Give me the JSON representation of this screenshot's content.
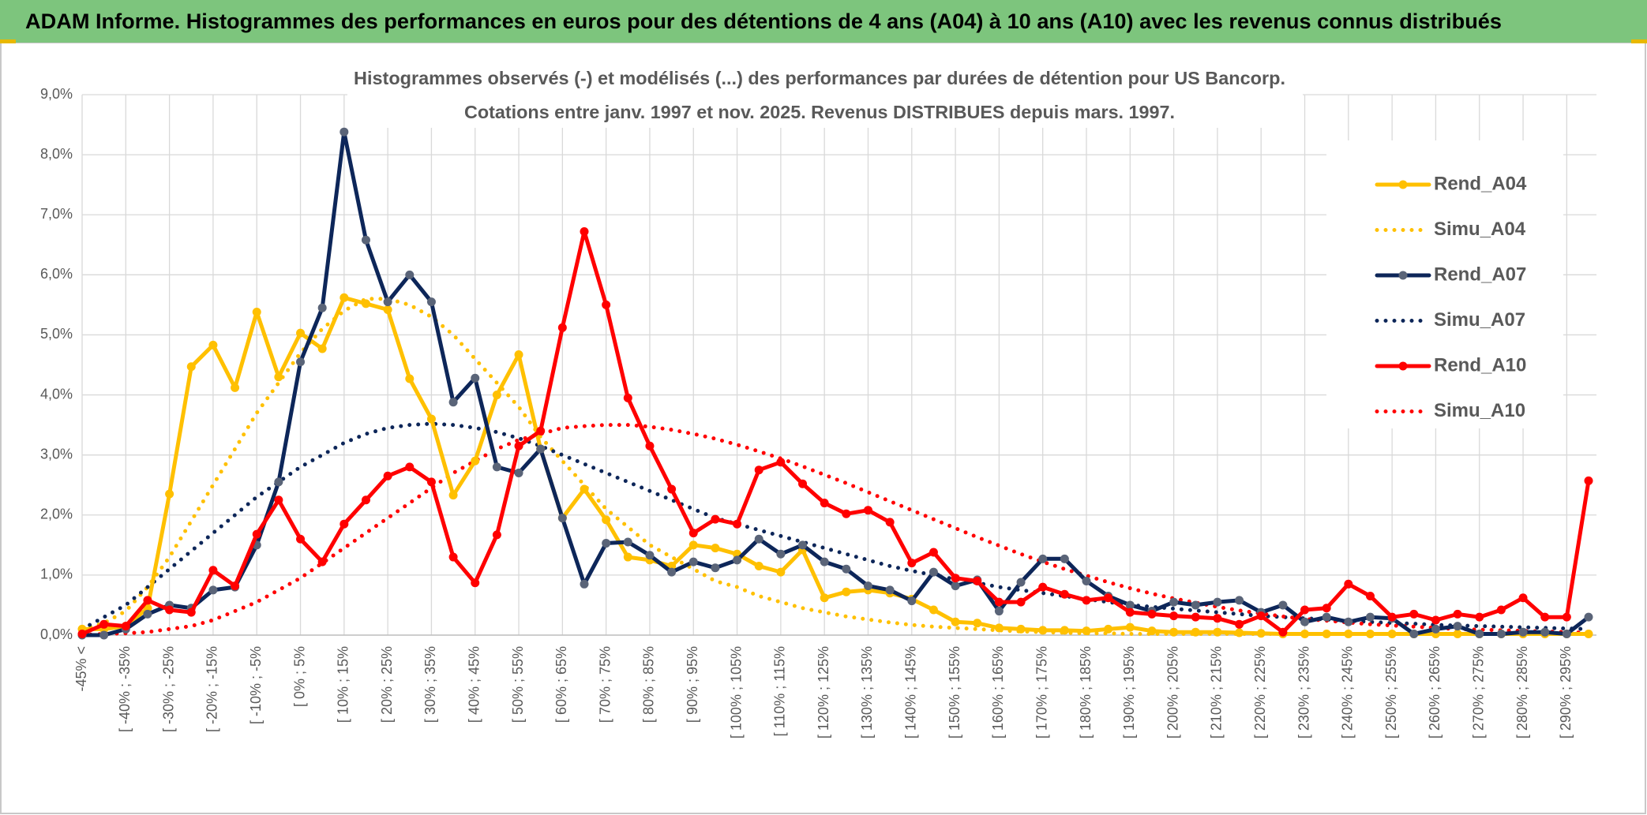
{
  "header": {
    "title": "ADAM Informe. Histogrammes des performances en euros pour des détentions de 4 ans (A04) à 10 ans (A10) avec les revenus connus distribués"
  },
  "chart_data": {
    "type": "line",
    "title": "Histogrammes observés (-) et modélisés (...) des performances par durées de détention pour US Bancorp.",
    "subtitle": "Cotations entre janv. 1997 et nov. 2025. Revenus DISTRIBUES depuis mars. 1997.",
    "categories": [
      "-45% <",
      null,
      "[ -40% ; -35%",
      null,
      "[ -30% ; -25%",
      null,
      "[ -20% ; -15%",
      null,
      "[ -10% ; -5%",
      null,
      "[ 0% ; 5%",
      null,
      "[ 10% ; 15%",
      null,
      "[ 20% ; 25%",
      null,
      "[ 30% ; 35%",
      null,
      "[ 40% ; 45%",
      null,
      "[ 50% ; 55%",
      null,
      "[ 60% ; 65%",
      null,
      "[ 70% ; 75%",
      null,
      "[ 80% ; 85%",
      null,
      "[ 90% ; 95%",
      null,
      "[ 100% ; 105%",
      null,
      "[ 110% ; 115%",
      null,
      "[ 120% ; 125%",
      null,
      "[ 130% ; 135%",
      null,
      "[ 140% ; 145%",
      null,
      "[ 150% ; 155%",
      null,
      "[ 160% ; 165%",
      null,
      "[ 170% ; 175%",
      null,
      "[ 180% ; 185%",
      null,
      "[ 190% ; 195%",
      null,
      "[ 200% ; 205%",
      null,
      "[ 210% ; 215%",
      null,
      "[ 220% ; 225%",
      null,
      "[ 230% ; 235%",
      null,
      "[ 240% ; 245%",
      null,
      "[ 250% ; 255%",
      null,
      "[ 260% ; 265%",
      null,
      "[ 270% ; 275%",
      null,
      "[ 280% ; 285%",
      null,
      "[ 290% ; 295%",
      null
    ],
    "ylim": [
      0,
      9
    ],
    "yticks": [
      {
        "value": 0,
        "label": "0,0%"
      },
      {
        "value": 1,
        "label": "1,0%"
      },
      {
        "value": 2,
        "label": "2,0%"
      },
      {
        "value": 3,
        "label": "3,0%"
      },
      {
        "value": 4,
        "label": "4,0%"
      },
      {
        "value": 5,
        "label": "5,0%"
      },
      {
        "value": 6,
        "label": "6,0%"
      },
      {
        "value": 7,
        "label": "7,0%"
      },
      {
        "value": 8,
        "label": "8,0%"
      },
      {
        "value": 9,
        "label": "9,0%"
      }
    ],
    "grid": true,
    "legend": "right",
    "series": [
      {
        "name": "Rend_A04",
        "color": "#ffc000",
        "line_style": "solid",
        "markers": true,
        "values": [
          0.1,
          0.1,
          0.15,
          0.45,
          2.35,
          4.47,
          4.83,
          4.12,
          5.38,
          4.3,
          5.03,
          4.77,
          5.62,
          5.52,
          5.42,
          4.27,
          3.6,
          2.33,
          2.9,
          4.0,
          4.67,
          3.1,
          1.95,
          2.43,
          1.92,
          1.3,
          1.25,
          1.15,
          1.5,
          1.45,
          1.35,
          1.15,
          1.05,
          1.42,
          0.62,
          0.72,
          0.75,
          0.7,
          0.6,
          0.42,
          0.22,
          0.2,
          0.12,
          0.1,
          0.08,
          0.08,
          0.07,
          0.1,
          0.13,
          0.07,
          0.05,
          0.05,
          0.05,
          0.04,
          0.03,
          0.02,
          0.02,
          0.02,
          0.02,
          0.02,
          0.02,
          0.02,
          0.02,
          0.02,
          0.02,
          0.02,
          0.02,
          0.02,
          0.02,
          0.02
        ]
      },
      {
        "name": "Simu_A04",
        "color": "#ffc000",
        "line_style": "dotted",
        "markers": false,
        "values": [
          0.1,
          0.2,
          0.4,
          0.8,
          1.3,
          1.9,
          2.5,
          3.1,
          3.7,
          4.2,
          4.7,
          5.1,
          5.4,
          5.6,
          5.6,
          5.5,
          5.3,
          5.0,
          4.6,
          4.2,
          3.8,
          3.3,
          2.9,
          2.5,
          2.1,
          1.8,
          1.5,
          1.3,
          1.1,
          0.9,
          0.8,
          0.65,
          0.55,
          0.45,
          0.38,
          0.31,
          0.26,
          0.21,
          0.17,
          0.14,
          0.12,
          0.1,
          0.08,
          0.06,
          0.05,
          0.04,
          0.03,
          0.03,
          0.02,
          0.02,
          0.02,
          0.02,
          0.02,
          0.02,
          0.02,
          0.02,
          0.02,
          0.02,
          0.02,
          0.02,
          0.02,
          0.02,
          0.02,
          0.02,
          0.02,
          0.02,
          0.02,
          0.02,
          0.02,
          0.02
        ]
      },
      {
        "name": "Rend_A07",
        "color": "#0d2659",
        "marker_color": "#5a6478",
        "line_style": "solid",
        "markers": true,
        "values": [
          0.0,
          0.0,
          0.1,
          0.35,
          0.5,
          0.45,
          0.75,
          0.8,
          1.5,
          2.55,
          4.55,
          5.45,
          8.38,
          6.58,
          5.55,
          6.0,
          5.55,
          3.88,
          4.28,
          2.8,
          2.7,
          3.1,
          1.95,
          0.85,
          1.53,
          1.55,
          1.33,
          1.05,
          1.22,
          1.12,
          1.25,
          1.6,
          1.35,
          1.5,
          1.22,
          1.1,
          0.82,
          0.75,
          0.57,
          1.05,
          0.82,
          0.92,
          0.4,
          0.88,
          1.27,
          1.27,
          0.9,
          0.65,
          0.5,
          0.4,
          0.55,
          0.5,
          0.55,
          0.58,
          0.38,
          0.5,
          0.22,
          0.3,
          0.22,
          0.3,
          0.28,
          0.02,
          0.1,
          0.15,
          0.02,
          0.02,
          0.05,
          0.05,
          0.02,
          0.3
        ]
      },
      {
        "name": "Simu_A07",
        "color": "#0d2659",
        "line_style": "dotted",
        "markers": false,
        "values": [
          0.1,
          0.3,
          0.5,
          0.8,
          1.1,
          1.4,
          1.7,
          2.0,
          2.3,
          2.55,
          2.8,
          3.0,
          3.2,
          3.35,
          3.45,
          3.5,
          3.52,
          3.5,
          3.45,
          3.38,
          3.28,
          3.15,
          3.0,
          2.85,
          2.7,
          2.55,
          2.4,
          2.25,
          2.1,
          1.95,
          1.85,
          1.75,
          1.65,
          1.55,
          1.45,
          1.35,
          1.25,
          1.15,
          1.07,
          1.0,
          0.93,
          0.87,
          0.8,
          0.75,
          0.7,
          0.65,
          0.6,
          0.55,
          0.5,
          0.47,
          0.44,
          0.41,
          0.38,
          0.35,
          0.32,
          0.3,
          0.28,
          0.26,
          0.24,
          0.22,
          0.2,
          0.19,
          0.17,
          0.16,
          0.15,
          0.14,
          0.13,
          0.12,
          0.11,
          0.1
        ]
      },
      {
        "name": "Rend_A10",
        "color": "#ff0000",
        "line_style": "solid",
        "markers": true,
        "values": [
          0.02,
          0.18,
          0.15,
          0.58,
          0.42,
          0.38,
          1.08,
          0.82,
          1.68,
          2.25,
          1.6,
          1.22,
          1.85,
          2.25,
          2.65,
          2.8,
          2.55,
          1.3,
          0.87,
          1.67,
          3.15,
          3.4,
          5.12,
          6.72,
          5.5,
          3.95,
          3.15,
          2.43,
          1.7,
          1.93,
          1.85,
          2.75,
          2.88,
          2.52,
          2.2,
          2.02,
          2.08,
          1.88,
          1.2,
          1.38,
          0.95,
          0.9,
          0.55,
          0.55,
          0.8,
          0.68,
          0.58,
          0.62,
          0.38,
          0.35,
          0.32,
          0.3,
          0.28,
          0.18,
          0.32,
          0.05,
          0.42,
          0.45,
          0.85,
          0.65,
          0.3,
          0.35,
          0.25,
          0.35,
          0.3,
          0.42,
          0.62,
          0.3,
          0.3,
          2.57
        ]
      },
      {
        "name": "Simu_A10",
        "color": "#ff0000",
        "line_style": "dotted",
        "markers": false,
        "values": [
          0.0,
          0.02,
          0.03,
          0.05,
          0.1,
          0.15,
          0.25,
          0.4,
          0.55,
          0.75,
          0.95,
          1.2,
          1.45,
          1.7,
          1.95,
          2.2,
          2.45,
          2.7,
          2.9,
          3.1,
          3.25,
          3.35,
          3.45,
          3.48,
          3.5,
          3.5,
          3.47,
          3.42,
          3.35,
          3.27,
          3.17,
          3.06,
          2.94,
          2.81,
          2.67,
          2.53,
          2.38,
          2.23,
          2.08,
          1.93,
          1.78,
          1.63,
          1.49,
          1.35,
          1.22,
          1.1,
          0.99,
          0.88,
          0.78,
          0.69,
          0.61,
          0.54,
          0.47,
          0.41,
          0.36,
          0.31,
          0.27,
          0.24,
          0.21,
          0.18,
          0.16,
          0.14,
          0.12,
          0.1,
          0.09,
          0.08,
          0.07,
          0.06,
          0.05,
          0.04
        ]
      }
    ]
  }
}
